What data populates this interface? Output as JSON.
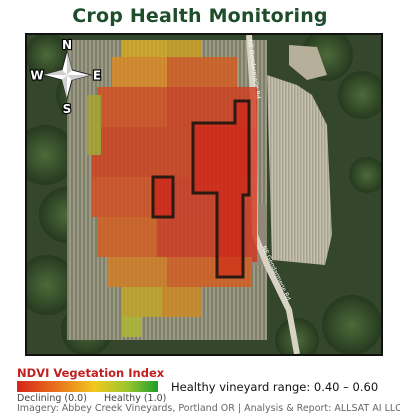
{
  "title": "Crop Health Monitoring",
  "map": {
    "compass": {
      "n": "N",
      "s": "S",
      "e": "E",
      "w": "W"
    },
    "road_labels": [
      "NE Gendarmerie Rd",
      "NE Gendarmerie Rd"
    ],
    "overlay": "NDVI heat map"
  },
  "legend": {
    "title": "NDVI Vegetation Index",
    "low_label": "Declining (0.0)",
    "high_label": "Healthy (1.0)",
    "low_color": "#d42418",
    "high_color": "#1f9d2a"
  },
  "range_text": "Healthy vineyard range: 0.40 – 0.60",
  "credit": "Imagery: Abbey Creek Vineyards, Portland OR  |  Analysis & Report: ALLSAT AI LLC",
  "colors": {
    "title": "#1d4d2a",
    "legend_title": "#c0201e"
  }
}
